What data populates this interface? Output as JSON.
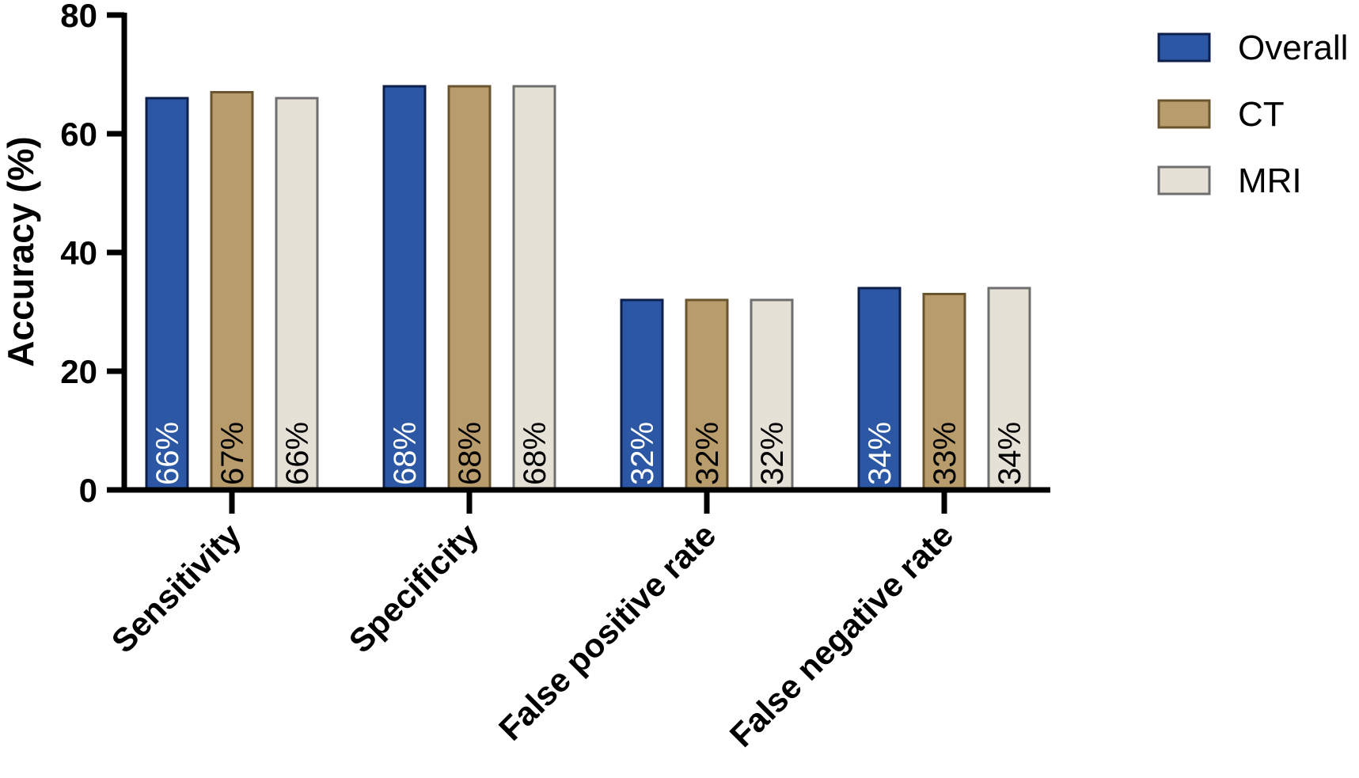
{
  "chart_data": {
    "type": "bar",
    "title": "",
    "xlabel": "",
    "ylabel": "Accuracy (%)",
    "ylim": [
      0,
      80
    ],
    "yticks": [
      0,
      20,
      40,
      60,
      80
    ],
    "categories": [
      "Sensitivity",
      "Specificity",
      "False positive rate",
      "False negative rate"
    ],
    "series": [
      {
        "name": "Overall",
        "values": [
          66,
          68,
          32,
          34
        ],
        "labels": [
          "66%",
          "68%",
          "32%",
          "34%"
        ],
        "fill": "#2b57a4",
        "stroke": "#0d1f4a",
        "label_color": "#ffffff"
      },
      {
        "name": "CT",
        "values": [
          67,
          68,
          32,
          33
        ],
        "labels": [
          "67%",
          "68%",
          "32%",
          "33%"
        ],
        "fill": "#b99c6c",
        "stroke": "#6b5530",
        "label_color": "#000000"
      },
      {
        "name": "MRI",
        "values": [
          66,
          68,
          32,
          34
        ],
        "labels": [
          "66%",
          "68%",
          "32%",
          "34%"
        ],
        "fill": "#e6e1d7",
        "stroke": "#6e6e6e",
        "label_color": "#000000"
      }
    ],
    "legend_position": "top-right",
    "grid": false
  }
}
